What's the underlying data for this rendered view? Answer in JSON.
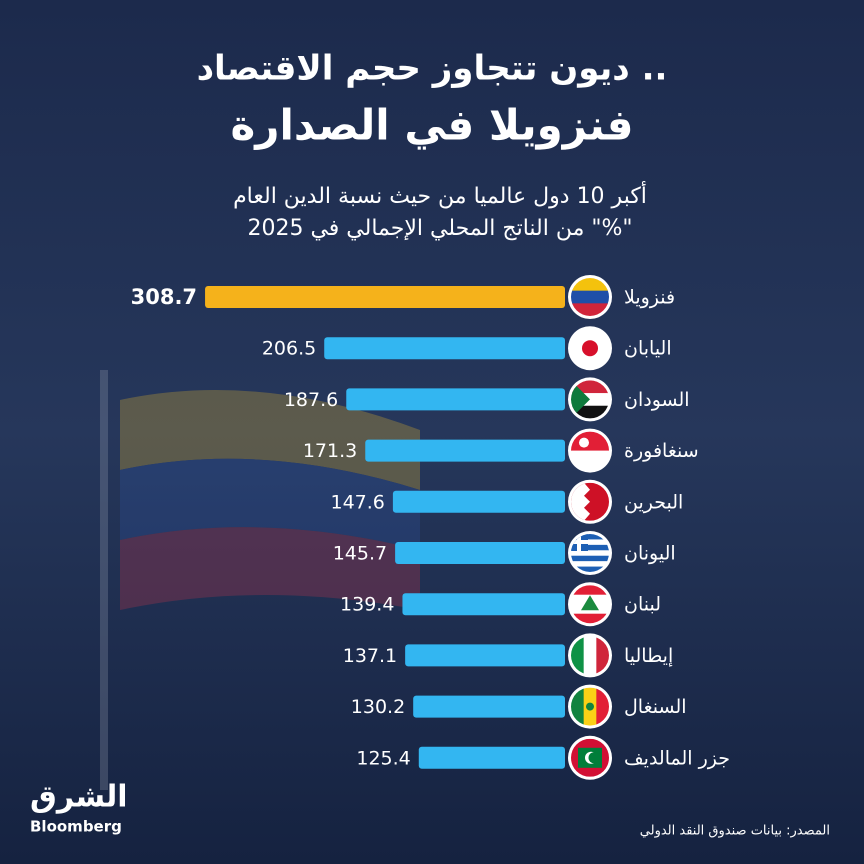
{
  "chart_data": {
    "type": "bar",
    "orientation": "horizontal",
    "title": "ديون تتجاوز حجم الاقتصاد ..",
    "headline": "فنزويلا في الصدارة",
    "subtitle": [
      "أكبر 10 دول عالميا من حيث نسبة الدين العام",
      "من الناتج المحلي الإجمالي في 2025 \"%\""
    ],
    "categories": [
      "فنزويلا",
      "اليابان",
      "السودان",
      "سنغافورة",
      "البحرين",
      "اليونان",
      "لبنان",
      "إيطاليا",
      "السنغال",
      "جزر المالديف"
    ],
    "values": [
      308.7,
      206.5,
      187.6,
      171.3,
      147.6,
      145.7,
      139.4,
      137.1,
      130.2,
      125.4
    ],
    "colors": [
      "#f5b21b",
      "#33b6f1",
      "#33b6f1",
      "#33b6f1",
      "#33b6f1",
      "#33b6f1",
      "#33b6f1",
      "#33b6f1",
      "#33b6f1",
      "#33b6f1"
    ],
    "source": "المصدر: بيانات صندوق النقد الدولي"
  },
  "logo": {
    "name": "الشرق",
    "partner": "Bloomberg"
  }
}
